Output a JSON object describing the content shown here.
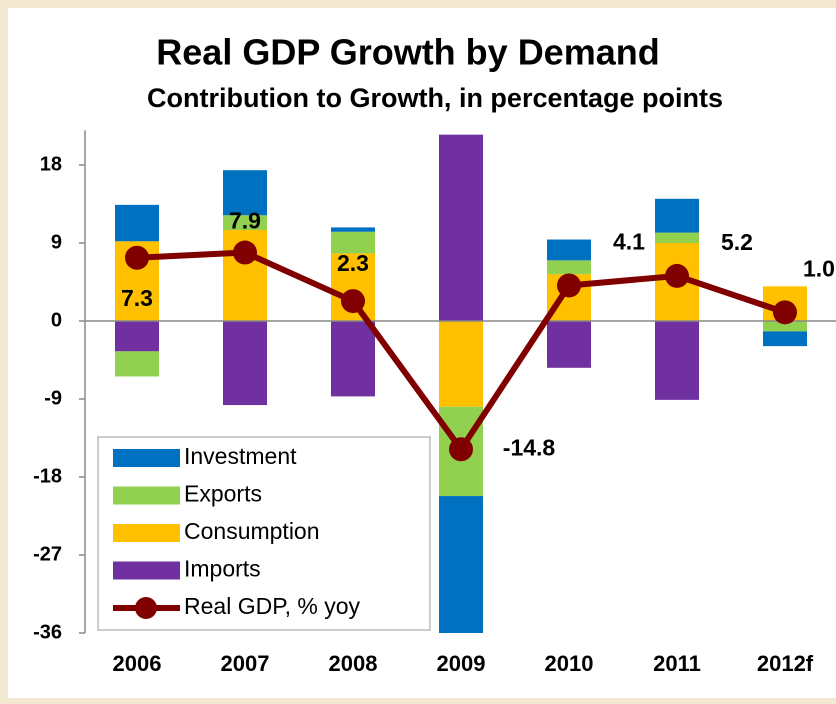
{
  "chart_data": {
    "type": "bar",
    "title": "Real GDP Growth by Demand",
    "subtitle": "Contribution to Growth, in percentage points",
    "categories": [
      "2006",
      "2007",
      "2008",
      "2009",
      "2010",
      "2011",
      "2012f"
    ],
    "series": [
      {
        "name": "Investment",
        "color": "#0070c0",
        "values": [
          4.2,
          5.2,
          0.5,
          -16.1,
          2.4,
          3.9,
          -1.7
        ]
      },
      {
        "name": "Exports",
        "color": "#92d050",
        "values": [
          -2.9,
          1.7,
          2.5,
          -10.3,
          1.6,
          1.2,
          -1.2
        ]
      },
      {
        "name": "Consumption",
        "color": "#ffc000",
        "values": [
          9.2,
          10.5,
          7.8,
          -9.9,
          5.4,
          9.0,
          4.0
        ]
      },
      {
        "name": "Imports",
        "color": "#7030a0",
        "values": [
          -3.5,
          -9.7,
          -8.7,
          21.5,
          -5.4,
          -9.1,
          0
        ]
      },
      {
        "name": "Real GDP, % yoy",
        "type": "line",
        "color": "#800000",
        "values": [
          7.3,
          7.9,
          2.3,
          -14.8,
          4.1,
          5.2,
          1.0
        ],
        "value_labels": [
          "7.3",
          "7.9",
          "2.3",
          "-14.8",
          "4.1",
          "5.2",
          "1.0"
        ]
      }
    ],
    "ylim": [
      -36,
      22
    ],
    "yticks": [
      -36,
      -27,
      -18,
      -9,
      0,
      9,
      18
    ],
    "grid": false,
    "legend": "lower left"
  }
}
